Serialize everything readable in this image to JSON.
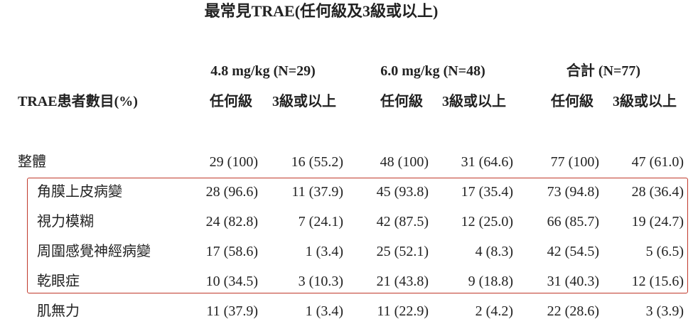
{
  "title": "最常見TRAE(任何級及3級或以上)",
  "table": {
    "row_header": "TRAE患者數目(%)",
    "groups": [
      {
        "label": "4.8 mg/kg (N=29)",
        "columns": [
          "任何級",
          "3級或以上"
        ]
      },
      {
        "label": "6.0 mg/kg (N=48)",
        "columns": [
          "任何級",
          "3級或以上"
        ]
      },
      {
        "label": "合計 (N=77)",
        "columns": [
          "任何級",
          "3級或以上"
        ]
      }
    ],
    "rows": [
      {
        "label": "整體",
        "cells": [
          "29 (100)",
          "16 (55.2)",
          "48 (100)",
          "31 (64.6)",
          "77 (100)",
          "47 (61.0)"
        ]
      },
      {
        "label": "角膜上皮病變",
        "cells": [
          "28 (96.6)",
          "11 (37.9)",
          "45 (93.8)",
          "17 (35.4)",
          "73 (94.8)",
          "28 (36.4)"
        ]
      },
      {
        "label": "視力模糊",
        "cells": [
          "24 (82.8)",
          "7 (24.1)",
          "42 (87.5)",
          "12 (25.0)",
          "66 (85.7)",
          "19 (24.7)"
        ]
      },
      {
        "label": "周圍感覺神經病變",
        "cells": [
          "17 (58.6)",
          "1 (3.4)",
          "25 (52.1)",
          "4 (8.3)",
          "42 (54.5)",
          "5 (6.5)"
        ]
      },
      {
        "label": "乾眼症",
        "cells": [
          "10 (34.5)",
          "3 (10.3)",
          "21 (43.8)",
          "9 (18.8)",
          "31 (40.3)",
          "12 (15.6)"
        ]
      },
      {
        "label": "肌無力",
        "cells": [
          "11 (37.9)",
          "1 (3.4)",
          "11 (22.9)",
          "2 (4.2)",
          "22 (28.6)",
          "3 (3.9)"
        ]
      }
    ]
  }
}
